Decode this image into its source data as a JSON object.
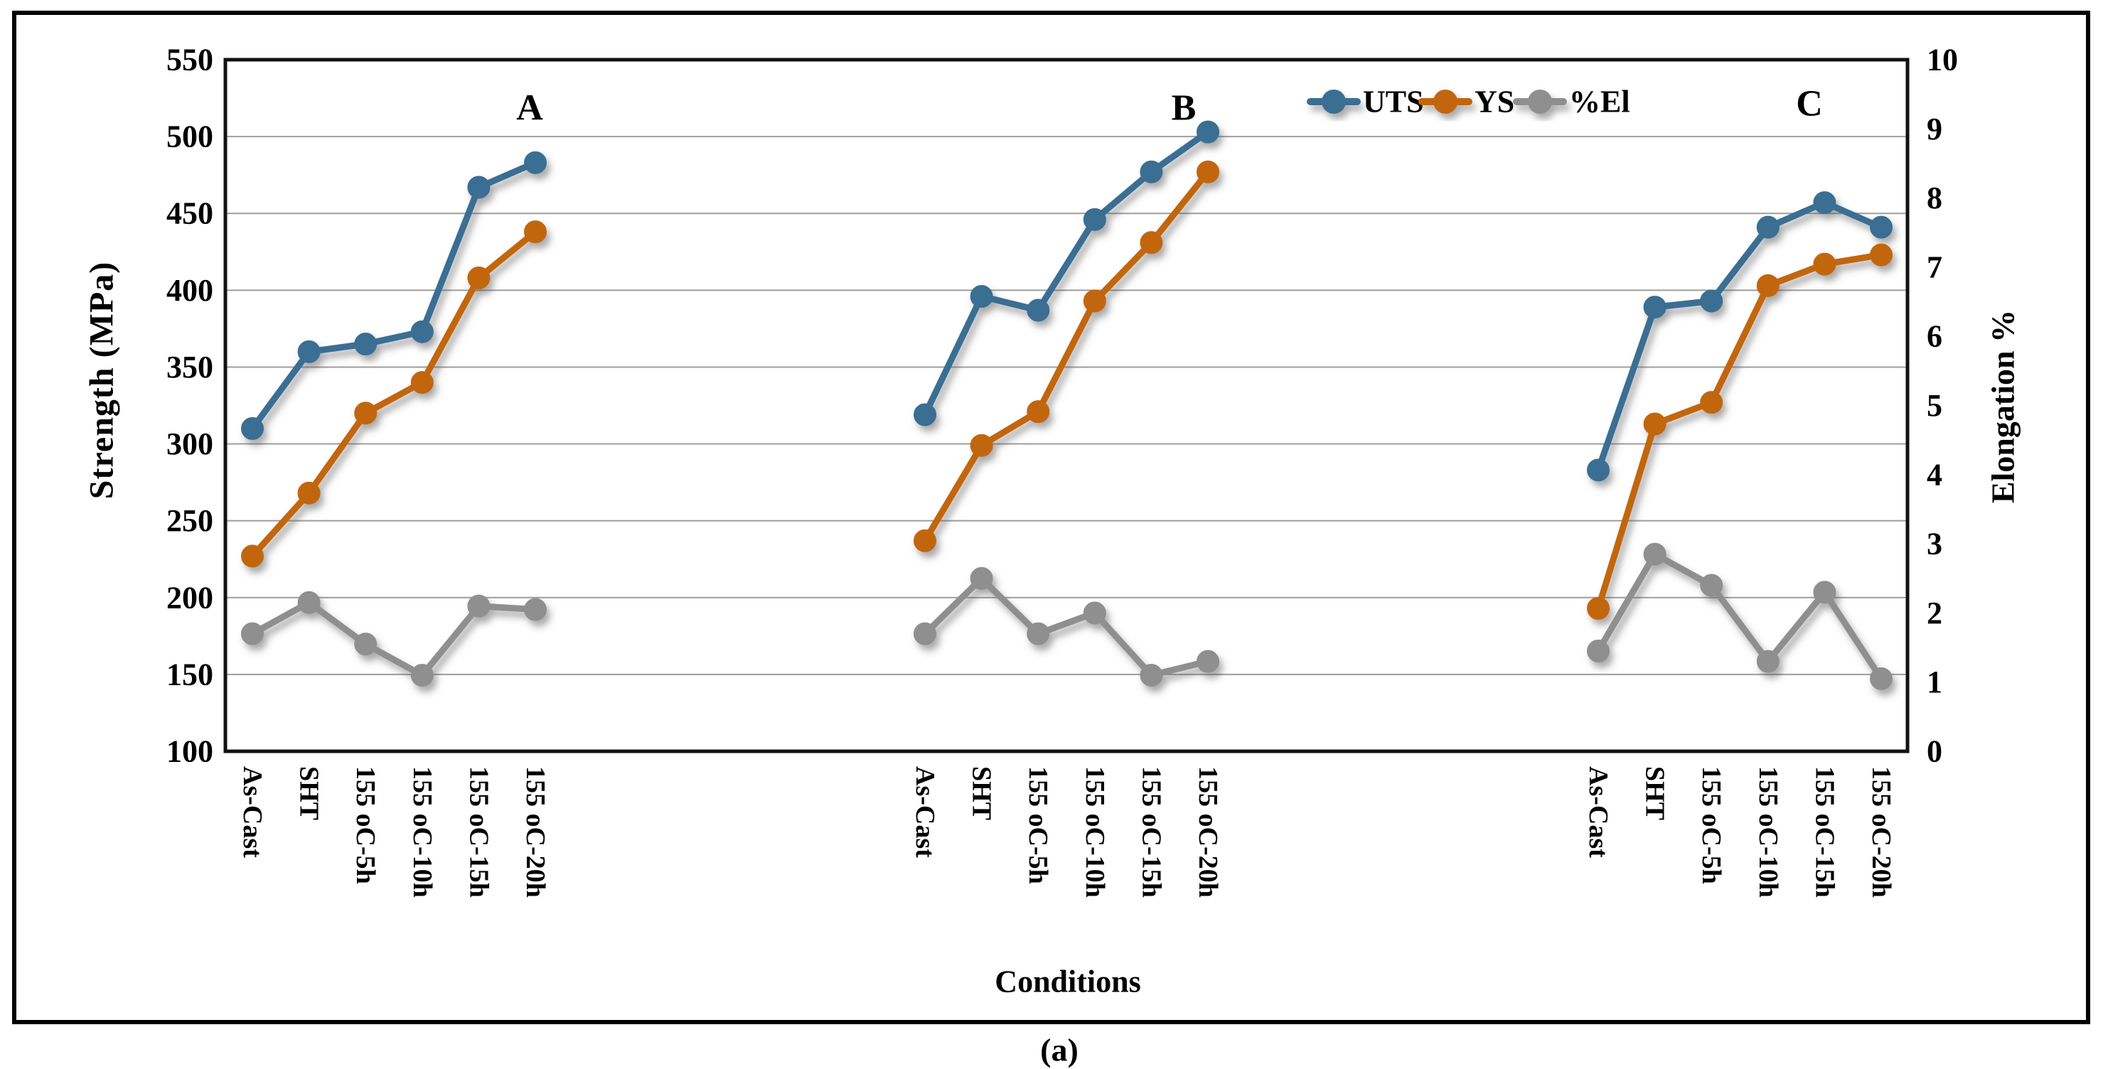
{
  "figure": {
    "caption": "(a)",
    "xlabel": "Conditions",
    "ylabel_left": "Strength (MPa)",
    "ylabel_right": "Elongation  %"
  },
  "chart_data": {
    "type": "line",
    "title": "",
    "xlabel": "Conditions",
    "ylabel_left": "Strength (MPa)",
    "ylabel_right": "Elongation %",
    "grid": true,
    "legend_position": "top-right-inside",
    "left_axis": {
      "min": 100,
      "max": 550,
      "step": 50
    },
    "right_axis": {
      "min": 0,
      "max": 10,
      "step": 1
    },
    "categories": [
      "As-Cast",
      "SHT",
      "155 oC-5h",
      "155 oC-10h",
      "155 oC-15h",
      "155 oC-20h"
    ],
    "groups": [
      {
        "label": "A",
        "series": [
          {
            "name": "UTS",
            "axis": "left",
            "values": [
              310,
              360,
              365,
              373,
              467,
              483
            ]
          },
          {
            "name": "YS",
            "axis": "left",
            "values": [
              227,
              268,
              320,
              340,
              408,
              438
            ]
          },
          {
            "name": "%El",
            "axis": "right",
            "values": [
              1.7,
              2.15,
              1.55,
              1.1,
              2.1,
              2.05
            ]
          }
        ]
      },
      {
        "label": "B",
        "series": [
          {
            "name": "UTS",
            "axis": "left",
            "values": [
              319,
              396,
              387,
              446,
              477,
              503
            ]
          },
          {
            "name": "YS",
            "axis": "left",
            "values": [
              237,
              299,
              321,
              393,
              431,
              477
            ]
          },
          {
            "name": "%El",
            "axis": "right",
            "values": [
              1.7,
              2.5,
              1.7,
              2.0,
              1.1,
              1.3
            ]
          }
        ]
      },
      {
        "label": "C",
        "series": [
          {
            "name": "UTS",
            "axis": "left",
            "values": [
              283,
              389,
              393,
              441,
              457,
              441
            ]
          },
          {
            "name": "YS",
            "axis": "left",
            "values": [
              193,
              313,
              327,
              403,
              417,
              423
            ]
          },
          {
            "name": "%El",
            "axis": "right",
            "values": [
              1.45,
              2.85,
              2.4,
              1.3,
              2.3,
              1.05
            ]
          }
        ]
      }
    ],
    "series_colors": {
      "UTS": "#3B6E93",
      "YS": "#C2660D",
      "%El": "#8F8F8F"
    },
    "legend": [
      {
        "label": "UTS",
        "color": "#3B6E93"
      },
      {
        "label": "YS",
        "color": "#C2660D"
      },
      {
        "label": "%El",
        "color": "#8F8F8F"
      }
    ],
    "colors": {
      "gridline": "#9E9E9E",
      "frame": "#111111",
      "outer_border": "#000000",
      "text": "#000000"
    }
  }
}
